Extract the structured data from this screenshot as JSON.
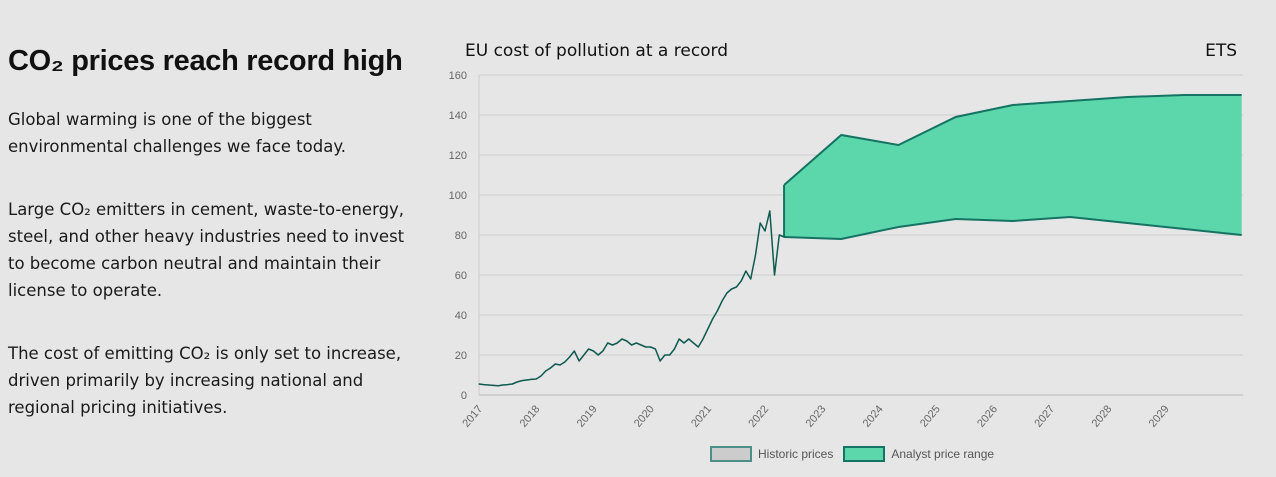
{
  "article": {
    "heading": "CO₂ prices reach record high",
    "paragraphs": [
      "Global warming is one of the biggest environmental challenges we face today.",
      "Large CO₂ emitters in cement, waste-to-energy, steel, and other heavy industries need to invest to become carbon neutral and maintain their license to operate.",
      "The cost of emitting CO₂ is only set to increase, driven primarily by increasing national and regional pricing initiatives."
    ]
  },
  "chart_data": {
    "type": "area",
    "title": "EU cost of pollution at a record",
    "corner_label": "ETS",
    "ylim": [
      0,
      160
    ],
    "yticks": [
      0,
      20,
      40,
      60,
      80,
      100,
      120,
      140,
      160
    ],
    "xticks": [
      "2017",
      "2018",
      "2019",
      "2020",
      "2021",
      "2022",
      "2023",
      "2024",
      "2025",
      "2026",
      "2027",
      "2028",
      "2029"
    ],
    "grid": true,
    "legend_position": "bottom",
    "colors": {
      "historic_line": "#0e5a50",
      "historic_fill": "#cccccc",
      "range_fill": "#5cd6ab",
      "range_line": "#157362"
    },
    "series": [
      {
        "name": "Historic prices",
        "type": "line",
        "x_start": "2017-01",
        "step": "month",
        "values": [
          5.5,
          5.2,
          5.0,
          4.8,
          4.6,
          5.0,
          5.2,
          5.5,
          6.5,
          7.2,
          7.5,
          7.8,
          8.0,
          9.5,
          12,
          13.5,
          15.5,
          15,
          16.5,
          19,
          22,
          17,
          20,
          23,
          22,
          20,
          22,
          26,
          25,
          26,
          28,
          27,
          25,
          26,
          25,
          24,
          24,
          23,
          17,
          20,
          20,
          23,
          28,
          26,
          28,
          26,
          24,
          28,
          33,
          38,
          42,
          47,
          51,
          53,
          54,
          57,
          62,
          58,
          70,
          86,
          82,
          92,
          60,
          80,
          79
        ]
      },
      {
        "name": "Analyst price range",
        "type": "range",
        "x": [
          "2022-05",
          "2023-05",
          "2024-05",
          "2025-05",
          "2026-05",
          "2027-05",
          "2028-05",
          "2029-05",
          "2030-05"
        ],
        "high": [
          105,
          130,
          125,
          139,
          145,
          147,
          149,
          150,
          150
        ],
        "low": [
          79,
          78,
          84,
          88,
          87,
          89,
          86,
          83,
          80
        ]
      }
    ]
  }
}
